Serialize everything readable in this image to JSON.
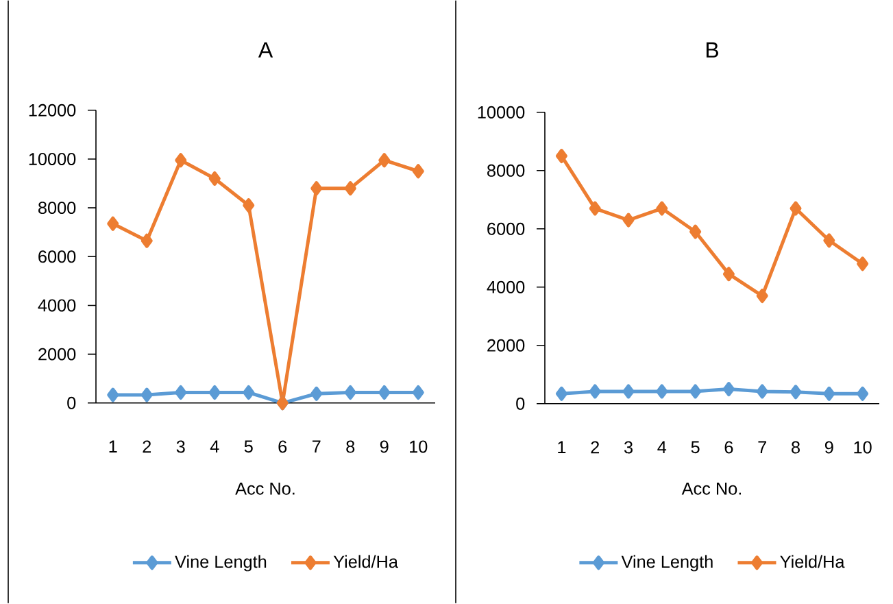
{
  "chart_data": [
    {
      "type": "line",
      "title": "A",
      "xlabel": "Acc No.",
      "categories": [
        "1",
        "2",
        "3",
        "4",
        "5",
        "6",
        "7",
        "8",
        "9",
        "10"
      ],
      "series": [
        {
          "name": "Vine Length",
          "color": "#5b9bd5",
          "values": [
            330,
            330,
            430,
            430,
            430,
            0,
            380,
            430,
            430,
            430
          ]
        },
        {
          "name": "Yield/Ha",
          "color": "#ed7d31",
          "values": [
            7350,
            6650,
            9950,
            9200,
            8100,
            0,
            8800,
            8800,
            9950,
            9500
          ]
        }
      ],
      "ylim": [
        0,
        12000
      ],
      "yticks": [
        0,
        2000,
        4000,
        6000,
        8000,
        10000,
        12000
      ],
      "legend": "bottom",
      "marker": "diamond"
    },
    {
      "type": "line",
      "title": "B",
      "xlabel": "Acc No.",
      "categories": [
        "1",
        "2",
        "3",
        "4",
        "5",
        "6",
        "7",
        "8",
        "9",
        "10"
      ],
      "series": [
        {
          "name": "Vine Length",
          "color": "#5b9bd5",
          "values": [
            340,
            420,
            420,
            420,
            420,
            500,
            420,
            400,
            340,
            340
          ]
        },
        {
          "name": "Yield/Ha",
          "color": "#ed7d31",
          "values": [
            8500,
            6700,
            6300,
            6700,
            5900,
            4450,
            3700,
            6700,
            5600,
            4800
          ]
        }
      ],
      "ylim": [
        0,
        10000
      ],
      "yticks": [
        0,
        2000,
        4000,
        6000,
        8000,
        10000
      ],
      "legend": "bottom",
      "marker": "diamond"
    }
  ]
}
